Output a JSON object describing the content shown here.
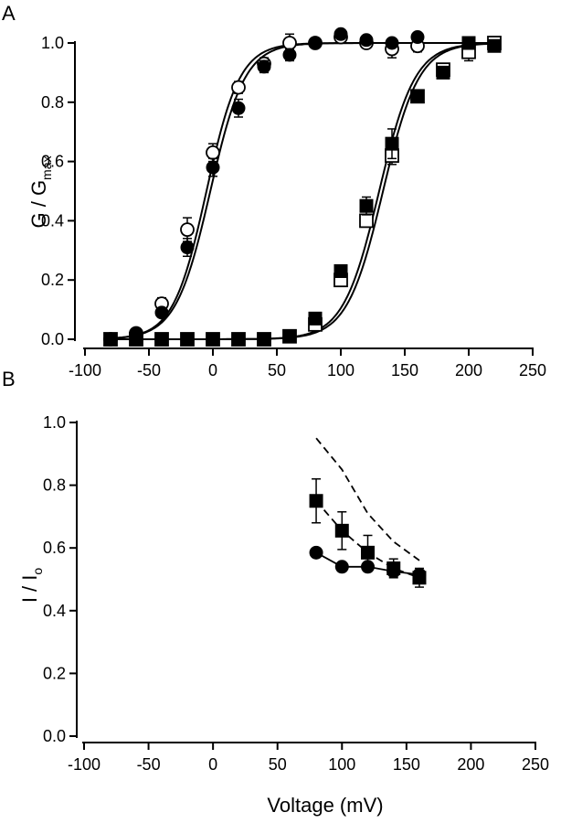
{
  "chart_data": [
    {
      "panel": "A",
      "type": "scatter",
      "title": "",
      "xlabel": "",
      "ylabel": "G / G",
      "ylabel_sub": "max",
      "xlim": [
        -100,
        250
      ],
      "ylim": [
        0,
        1.0
      ],
      "xticks": [
        -100,
        -50,
        0,
        50,
        100,
        150,
        200,
        250
      ],
      "yticks": [
        0.0,
        0.2,
        0.4,
        0.6,
        0.8,
        1.0
      ],
      "grid": false,
      "legend": "none",
      "series": [
        {
          "marker": "open-circle",
          "x": [
            -80,
            -60,
            -40,
            -20,
            0,
            20,
            40,
            60,
            80,
            100,
            120,
            140,
            160
          ],
          "y": [
            0.0,
            0.02,
            0.12,
            0.37,
            0.63,
            0.85,
            0.93,
            1.0,
            1.0,
            1.02,
            1.0,
            0.98,
            0.99
          ],
          "err": [
            0,
            0,
            0.02,
            0.04,
            0.03,
            0.02,
            0.02,
            0.03,
            0.01,
            0.01,
            0.01,
            0.03,
            0.02
          ]
        },
        {
          "marker": "filled-circle",
          "x": [
            -80,
            -60,
            -40,
            -20,
            0,
            20,
            40,
            60,
            80,
            100,
            120,
            140,
            160
          ],
          "y": [
            0.0,
            0.02,
            0.09,
            0.31,
            0.58,
            0.78,
            0.92,
            0.96,
            1.0,
            1.03,
            1.01,
            1.0,
            1.02
          ],
          "err": [
            0,
            0,
            0.01,
            0.03,
            0.03,
            0.03,
            0.02,
            0.02,
            0.01,
            0.01,
            0.01,
            0.01,
            0.01
          ]
        },
        {
          "marker": "open-square",
          "x": [
            -80,
            -60,
            -40,
            -20,
            0,
            20,
            40,
            60,
            80,
            100,
            120,
            140,
            160,
            180,
            200,
            220
          ],
          "y": [
            0.0,
            0.0,
            0.0,
            0.0,
            0.0,
            0.0,
            0.0,
            0.01,
            0.05,
            0.2,
            0.4,
            0.62,
            0.82,
            0.91,
            0.97,
            1.0
          ],
          "err": [
            0,
            0,
            0,
            0,
            0,
            0,
            0,
            0,
            0.01,
            0.02,
            0.02,
            0.03,
            0.02,
            0.02,
            0.03,
            0.01
          ]
        },
        {
          "marker": "filled-square",
          "x": [
            -80,
            -60,
            -40,
            -20,
            0,
            20,
            40,
            60,
            80,
            100,
            120,
            140,
            160,
            180,
            200,
            220
          ],
          "y": [
            0.0,
            0.0,
            0.0,
            0.0,
            0.0,
            0.0,
            0.0,
            0.01,
            0.07,
            0.23,
            0.45,
            0.66,
            0.82,
            0.9,
            1.0,
            0.99
          ],
          "err": [
            0,
            0,
            0,
            0,
            0,
            0,
            0,
            0,
            0.02,
            0.02,
            0.03,
            0.05,
            0.02,
            0.01,
            0.01,
            0.01
          ]
        }
      ],
      "fits": [
        {
          "vhalf": -5,
          "slope": 13,
          "style": "solid"
        },
        {
          "vhalf": -2,
          "slope": 13.5,
          "style": "solid"
        },
        {
          "vhalf": 133,
          "slope": 14,
          "style": "solid"
        },
        {
          "vhalf": 130,
          "slope": 14,
          "style": "solid"
        }
      ]
    },
    {
      "panel": "B",
      "type": "scatter",
      "title": "",
      "xlabel": "Voltage (mV)",
      "ylabel": "I / I",
      "ylabel_sub": "o",
      "xlim": [
        -100,
        250
      ],
      "ylim": [
        0,
        1.0
      ],
      "xticks": [
        -100,
        -50,
        0,
        50,
        100,
        150,
        200,
        250
      ],
      "yticks": [
        0.0,
        0.2,
        0.4,
        0.6,
        0.8,
        1.0
      ],
      "grid": false,
      "legend": "none",
      "series": [
        {
          "marker": "filled-square",
          "x": [
            80,
            100,
            120,
            140,
            160
          ],
          "y": [
            0.75,
            0.655,
            0.585,
            0.535,
            0.505
          ],
          "err": [
            0.07,
            0.06,
            0.055,
            0.03,
            0.03
          ],
          "line": "dashed"
        },
        {
          "marker": "filled-circle",
          "x": [
            80,
            100,
            120,
            140,
            160
          ],
          "y": [
            0.585,
            0.54,
            0.54,
            0.525,
            0.515
          ],
          "err": [
            0,
            0,
            0,
            0.01,
            0.01
          ],
          "line": "solid"
        },
        {
          "marker": "none",
          "x": [
            80,
            100,
            120,
            140,
            160
          ],
          "y": [
            0.95,
            0.85,
            0.71,
            0.62,
            0.56
          ],
          "line": "dashed"
        }
      ]
    }
  ]
}
